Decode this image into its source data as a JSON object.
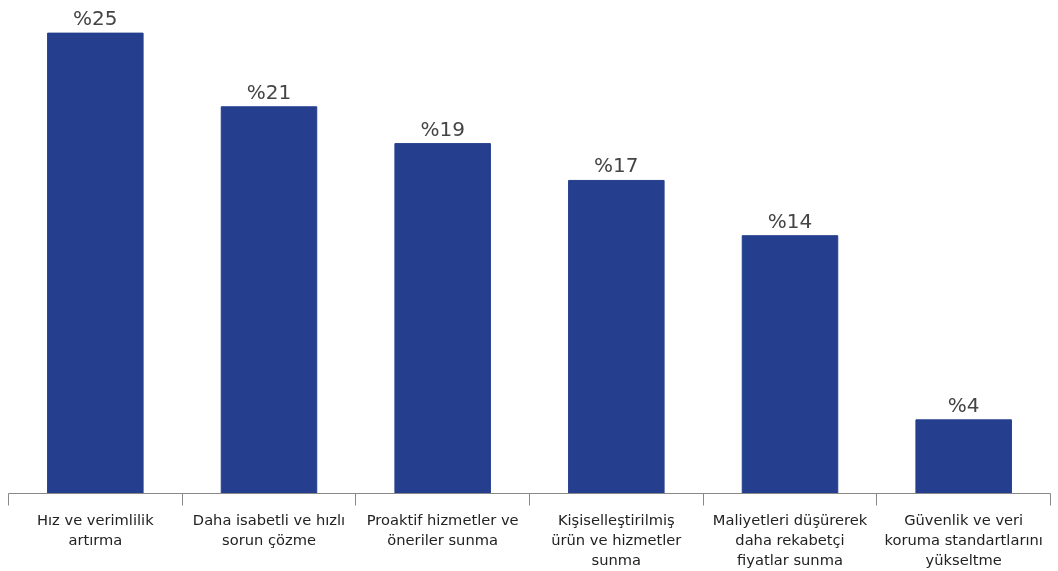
{
  "chart_data": {
    "type": "bar",
    "categories": [
      "Hız ve verimlilik artırma",
      "Daha isabetli ve hızlı sorun çözme",
      "Proaktif hizmetler ve öneriler sunma",
      "Kişiselleştirilmiş ürün ve hizmetler sunma",
      "Maliyetleri düşürerek daha rekabetçi fiyatlar sunma",
      "Güvenlik ve veri koruma standartlarını yükseltme"
    ],
    "values": [
      25,
      21,
      19,
      17,
      14,
      4
    ],
    "value_labels": [
      "%25",
      "%21",
      "%19",
      "%17",
      "%14",
      "%4"
    ],
    "color": "#253f8e",
    "grid": false
  }
}
